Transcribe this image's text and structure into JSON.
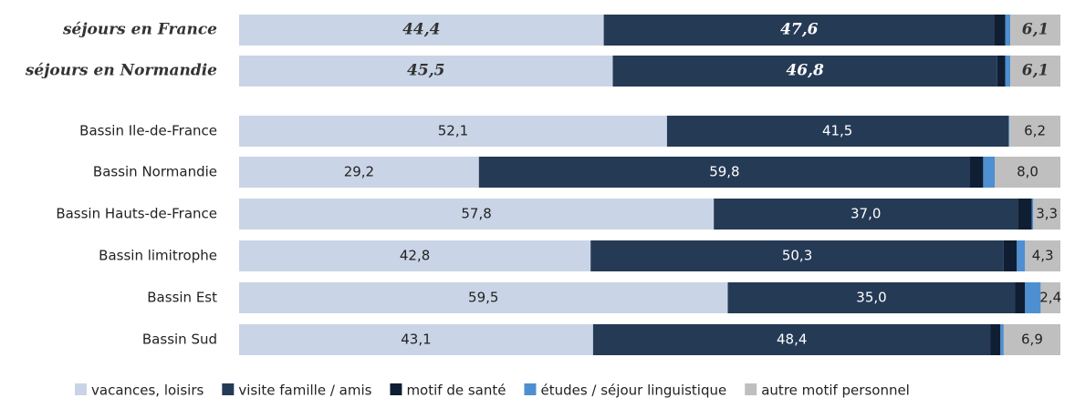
{
  "chart_data": {
    "type": "stacked-barh",
    "categories": [
      "séjours en France",
      "séjours en Normandie",
      "Bassin Ile-de-France",
      "Bassin Normandie",
      "Bassin Hauts-de-France",
      "Bassin limitrophe",
      "Bassin Est",
      "Bassin Sud"
    ],
    "highlight": [
      true,
      true,
      false,
      false,
      false,
      false,
      false,
      false
    ],
    "series": [
      {
        "name": "vacances, loisirs",
        "color": "#c9d5e6",
        "label_color": "#222",
        "values": [
          44.4,
          45.5,
          52.1,
          29.2,
          57.8,
          42.8,
          59.5,
          43.1
        ],
        "value_labels": [
          "44,4",
          "45,5",
          "52,1",
          "29,2",
          "57,8",
          "42,8",
          "59,5",
          "43,1"
        ]
      },
      {
        "name": "visite famille / amis",
        "color": "#253a55",
        "label_color": "#fff",
        "values": [
          47.6,
          46.8,
          41.5,
          59.8,
          37.0,
          50.3,
          35.0,
          48.4
        ],
        "value_labels": [
          "47,6",
          "46,8",
          "41,5",
          "59,8",
          "37,0",
          "50,3",
          "35,0",
          "48,4"
        ]
      },
      {
        "name": "motif de santé",
        "color": "#0f1e33",
        "values": [
          1.3,
          1.0,
          0.1,
          1.6,
          1.7,
          1.6,
          1.2,
          1.2
        ]
      },
      {
        "name": "études / séjour linguistique",
        "color": "#4d8fd1",
        "values": [
          0.6,
          0.6,
          0.1,
          1.4,
          0.2,
          1.0,
          1.9,
          0.4
        ]
      },
      {
        "name": "autre motif personnel",
        "color": "#bfbfbf",
        "label_color": "#222",
        "values": [
          6.1,
          6.1,
          6.2,
          8.0,
          3.3,
          4.3,
          2.4,
          6.9
        ],
        "value_labels": [
          "6,1",
          "6,1",
          "6,2",
          "8,0",
          "3,3",
          "4,3",
          "2,4",
          "6,9"
        ]
      }
    ]
  }
}
